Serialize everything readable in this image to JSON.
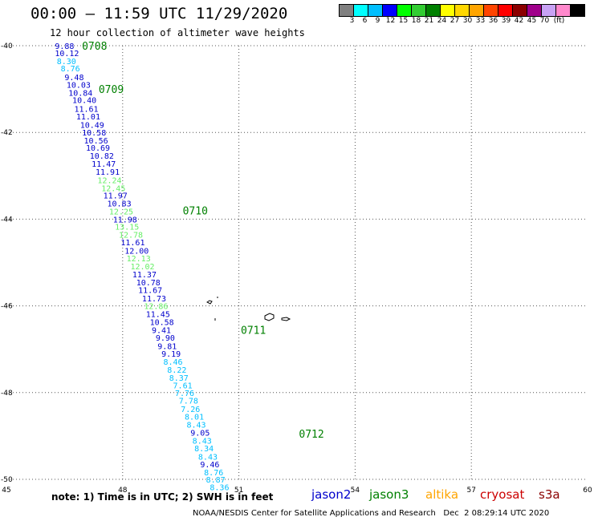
{
  "header": {
    "title": "00:00 – 11:59 UTC 11/29/2020",
    "subtitle": "12 hour collection of altimeter wave heights"
  },
  "color_scale": {
    "unit": "(ft)",
    "labels": [
      "3",
      "6",
      "9",
      "12",
      "15",
      "18",
      "21",
      "24",
      "27",
      "30",
      "33",
      "36",
      "39",
      "42",
      "45",
      "70"
    ],
    "colors": [
      "#808080",
      "#00ffff",
      "#00bfff",
      "#0000ff",
      "#00ff00",
      "#32cd32",
      "#008000",
      "#ffff00",
      "#ffd700",
      "#ffa500",
      "#ff4500",
      "#ff0000",
      "#8b0000",
      "#a0008b",
      "#c8a2f5",
      "#ff88cc",
      "#000000"
    ]
  },
  "legend": {
    "note": "note: 1) Time is in UTC; 2) SWH is in feet",
    "satellites": [
      {
        "label": "jason2",
        "color": "#0000cc"
      },
      {
        "label": "jason3",
        "color": "#008000"
      },
      {
        "label": "altika",
        "color": "#ffa500"
      },
      {
        "label": "cryosat",
        "color": "#cc0000"
      },
      {
        "label": "s3a",
        "color": "#8b0000"
      }
    ]
  },
  "credit": "NOAA/NESDIS Center for Satellite Applications and Research   Dec  2 08:29:14 UTC 2020",
  "chart_data": {
    "type": "scatter",
    "xlim": [
      45,
      60
    ],
    "ylim": [
      -50,
      -40
    ],
    "x_ticks": [
      "45",
      "48",
      "51",
      "54",
      "57",
      "60"
    ],
    "y_ticks": [
      "-40",
      "-42",
      "-44",
      "-46",
      "-48",
      "-50"
    ],
    "grid": true,
    "time_labels": [
      {
        "label": "0708",
        "x": 46.95,
        "y": -40.0
      },
      {
        "label": "0709",
        "x": 47.38,
        "y": -41.0
      },
      {
        "label": "0710",
        "x": 49.55,
        "y": -43.8
      },
      {
        "label": "0711",
        "x": 51.05,
        "y": -46.55
      },
      {
        "label": "0712",
        "x": 52.55,
        "y": -48.95
      }
    ],
    "points": [
      {
        "v": "9.88",
        "c": "#0000cc",
        "x": 46.25,
        "y": -40.0
      },
      {
        "v": "10.12",
        "c": "#0000cc",
        "x": 46.25,
        "y": -40.17
      },
      {
        "v": "8.30",
        "c": "#00bfff",
        "x": 46.3,
        "y": -40.35
      },
      {
        "v": "8.76",
        "c": "#00bfff",
        "x": 46.4,
        "y": -40.52
      },
      {
        "v": "9.48",
        "c": "#0000cc",
        "x": 46.5,
        "y": -40.72
      },
      {
        "v": "10.03",
        "c": "#0000cc",
        "x": 46.55,
        "y": -40.9
      },
      {
        "v": "10.84",
        "c": "#0000cc",
        "x": 46.6,
        "y": -41.08
      },
      {
        "v": "10.40",
        "c": "#0000cc",
        "x": 46.7,
        "y": -41.25
      },
      {
        "v": "11.61",
        "c": "#0000cc",
        "x": 46.75,
        "y": -41.45
      },
      {
        "v": "11.01",
        "c": "#0000cc",
        "x": 46.8,
        "y": -41.63
      },
      {
        "v": "10.49",
        "c": "#0000cc",
        "x": 46.9,
        "y": -41.82
      },
      {
        "v": "10.58",
        "c": "#0000cc",
        "x": 46.95,
        "y": -42.0
      },
      {
        "v": "10.56",
        "c": "#0000cc",
        "x": 47.0,
        "y": -42.18
      },
      {
        "v": "10.69",
        "c": "#0000cc",
        "x": 47.05,
        "y": -42.35
      },
      {
        "v": "10.82",
        "c": "#0000cc",
        "x": 47.15,
        "y": -42.53
      },
      {
        "v": "11.47",
        "c": "#0000cc",
        "x": 47.2,
        "y": -42.72
      },
      {
        "v": "11.91",
        "c": "#0000cc",
        "x": 47.3,
        "y": -42.9
      },
      {
        "v": "12.24",
        "c": "#66ee66",
        "x": 47.35,
        "y": -43.1
      },
      {
        "v": "12.45",
        "c": "#66ee66",
        "x": 47.45,
        "y": -43.28
      },
      {
        "v": "11.97",
        "c": "#0000cc",
        "x": 47.5,
        "y": -43.45
      },
      {
        "v": "10.83",
        "c": "#0000cc",
        "x": 47.6,
        "y": -43.63
      },
      {
        "v": "12.25",
        "c": "#66ee66",
        "x": 47.65,
        "y": -43.82
      },
      {
        "v": "11.98",
        "c": "#0000cc",
        "x": 47.75,
        "y": -44.0
      },
      {
        "v": "13.15",
        "c": "#66ee66",
        "x": 47.8,
        "y": -44.17
      },
      {
        "v": "12.78",
        "c": "#66ee66",
        "x": 47.9,
        "y": -44.35
      },
      {
        "v": "11.61",
        "c": "#0000cc",
        "x": 47.95,
        "y": -44.53
      },
      {
        "v": "12.00",
        "c": "#0000cc",
        "x": 48.05,
        "y": -44.72
      },
      {
        "v": "12.13",
        "c": "#66ee66",
        "x": 48.1,
        "y": -44.9
      },
      {
        "v": "12.02",
        "c": "#66ee66",
        "x": 48.2,
        "y": -45.08
      },
      {
        "v": "11.37",
        "c": "#0000cc",
        "x": 48.25,
        "y": -45.27
      },
      {
        "v": "10.78",
        "c": "#0000cc",
        "x": 48.35,
        "y": -45.45
      },
      {
        "v": "11.67",
        "c": "#0000cc",
        "x": 48.4,
        "y": -45.63
      },
      {
        "v": "11.73",
        "c": "#0000cc",
        "x": 48.5,
        "y": -45.82
      },
      {
        "v": "12.86",
        "c": "#66ee66",
        "x": 48.55,
        "y": -46.0
      },
      {
        "v": "11.45",
        "c": "#0000cc",
        "x": 48.6,
        "y": -46.18
      },
      {
        "v": "10.58",
        "c": "#0000cc",
        "x": 48.7,
        "y": -46.37
      },
      {
        "v": "9.41",
        "c": "#0000cc",
        "x": 48.75,
        "y": -46.55
      },
      {
        "v": "9.90",
        "c": "#0000cc",
        "x": 48.85,
        "y": -46.73
      },
      {
        "v": "9.81",
        "c": "#0000cc",
        "x": 48.9,
        "y": -46.92
      },
      {
        "v": "9.19",
        "c": "#0000cc",
        "x": 49.0,
        "y": -47.1
      },
      {
        "v": "8.46",
        "c": "#00bfff",
        "x": 49.05,
        "y": -47.28
      },
      {
        "v": "8.22",
        "c": "#00bfff",
        "x": 49.15,
        "y": -47.47
      },
      {
        "v": "8.37",
        "c": "#00bfff",
        "x": 49.2,
        "y": -47.65
      },
      {
        "v": "7.61",
        "c": "#00bfff",
        "x": 49.3,
        "y": -47.83
      },
      {
        "v": "7.76",
        "c": "#00bfff",
        "x": 49.35,
        "y": -48.0
      },
      {
        "v": "7.78",
        "c": "#00bfff",
        "x": 49.45,
        "y": -48.18
      },
      {
        "v": "7.26",
        "c": "#00bfff",
        "x": 49.5,
        "y": -48.37
      },
      {
        "v": "8.01",
        "c": "#00bfff",
        "x": 49.6,
        "y": -48.55
      },
      {
        "v": "8.43",
        "c": "#00bfff",
        "x": 49.65,
        "y": -48.73
      },
      {
        "v": "9.05",
        "c": "#0000cc",
        "x": 49.75,
        "y": -48.92
      },
      {
        "v": "8.43",
        "c": "#00bfff",
        "x": 49.8,
        "y": -49.1
      },
      {
        "v": "8.34",
        "c": "#00bfff",
        "x": 49.85,
        "y": -49.28
      },
      {
        "v": "8.43",
        "c": "#00bfff",
        "x": 49.95,
        "y": -49.47
      },
      {
        "v": "9.46",
        "c": "#0000cc",
        "x": 50.0,
        "y": -49.65
      },
      {
        "v": "8.76",
        "c": "#00bfff",
        "x": 50.1,
        "y": -49.83
      },
      {
        "v": "8.87",
        "c": "#00bfff",
        "x": 50.15,
        "y": -50.0
      },
      {
        "v": "8.36",
        "c": "#00bfff",
        "x": 50.25,
        "y": -50.18
      }
    ]
  }
}
